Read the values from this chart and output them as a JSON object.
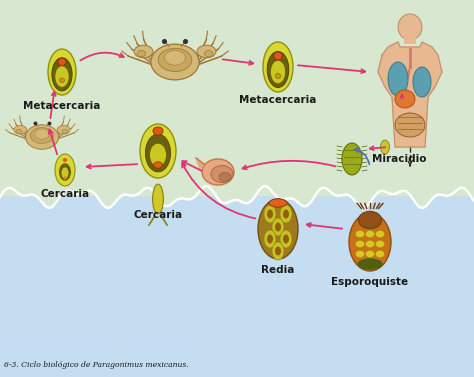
{
  "title": "6-3. Ciclo biológico de Paragonimus mexicanus.",
  "bg_top": "#d8e8d0",
  "bg_water": "#c5ddf0",
  "bg_page": "#f2ede0",
  "arrow_color": "#e03575",
  "arrow_color_blue": "#5070b0",
  "dashed_color": "#303030",
  "labels": {
    "metacercaria1": "Metacercaria",
    "metacercaria2": "Metacercaria",
    "cercaria1": "Cercaria",
    "cercaria2": "Cercaria",
    "redia": "Redia",
    "esporoquiste": "Esporoquiste",
    "miracidio": "Miracidio"
  },
  "caption": "6-3. Ciclo biológico de Paragonimus mexicanus.",
  "font_size_label": 7.5,
  "font_size_caption": 5.5
}
